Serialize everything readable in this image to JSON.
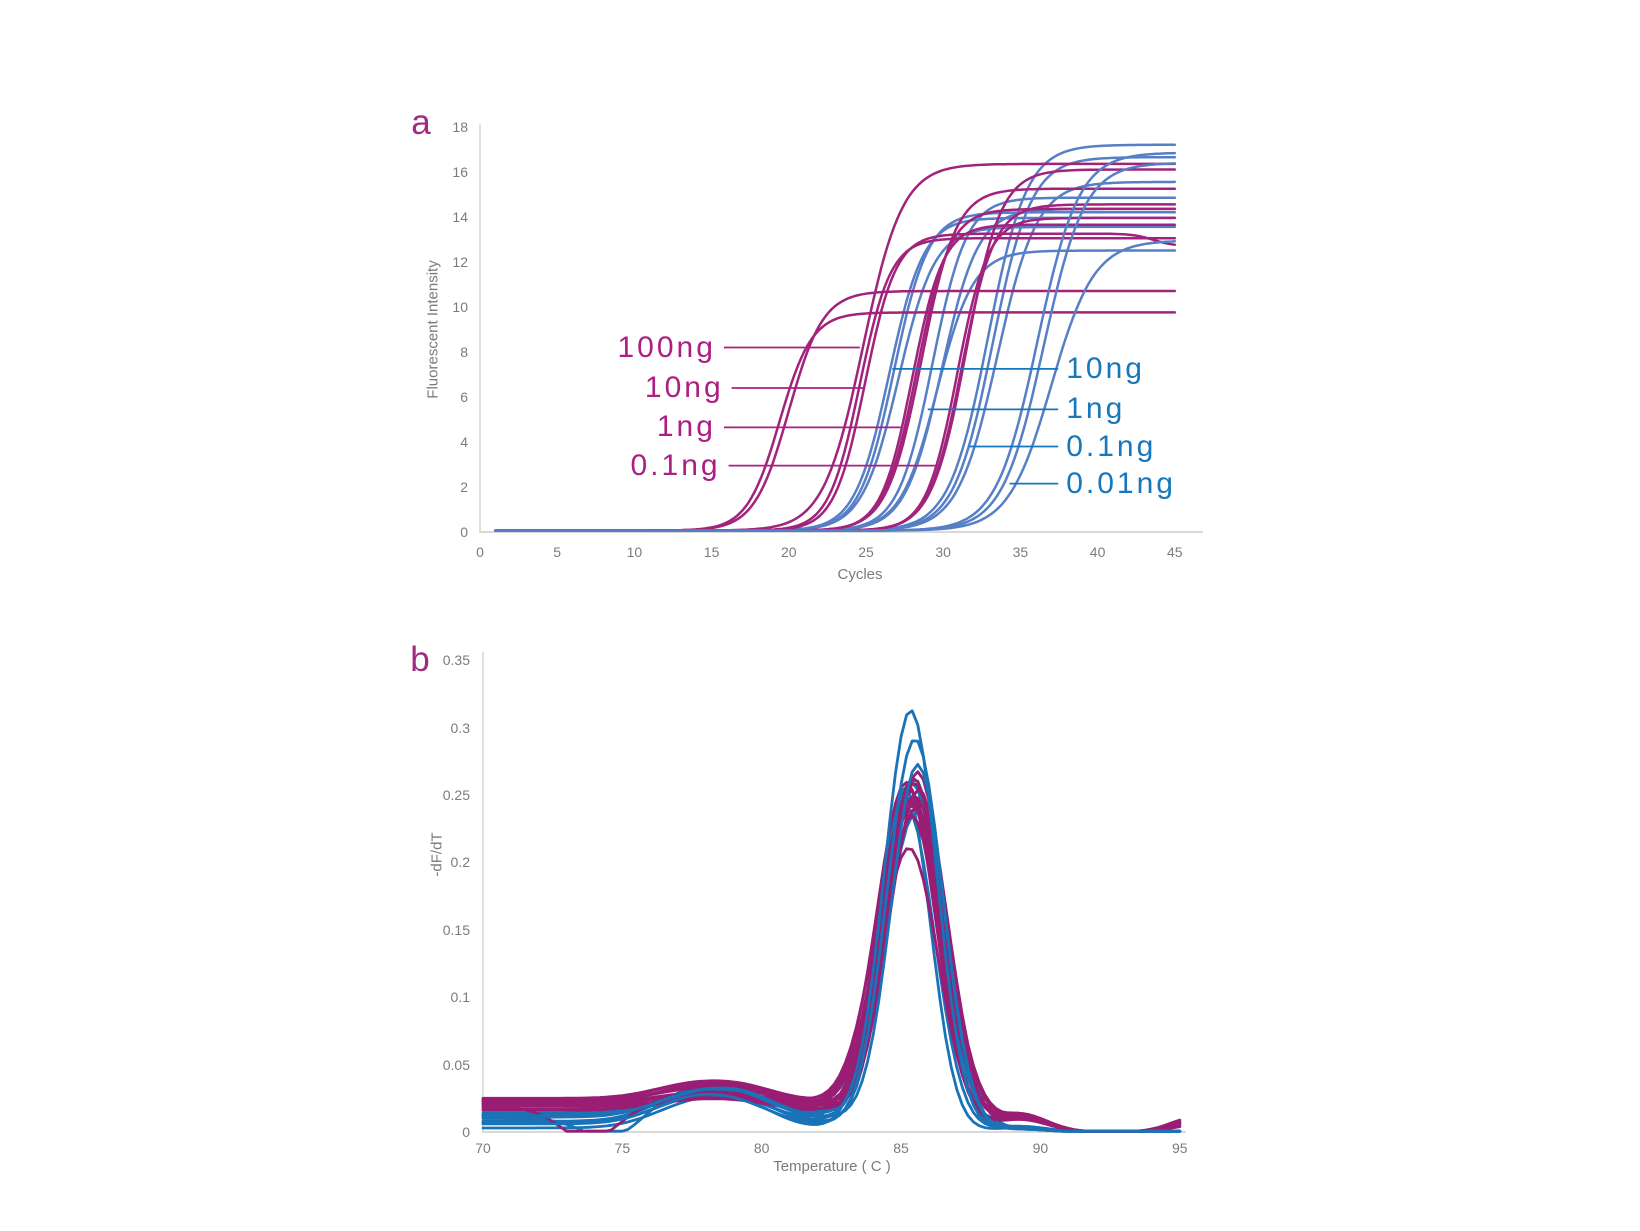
{
  "figure": {
    "background": "#ffffff",
    "description_panels": [
      "a",
      "b"
    ]
  },
  "chart_data": [
    {
      "id": "a",
      "type": "line",
      "panel_letter": "a",
      "xlabel": "Cycles",
      "ylabel": "Fluorescent Intensity",
      "xlim": [
        0,
        45
      ],
      "ylim": [
        0,
        18
      ],
      "xticks": [
        0,
        5,
        10,
        15,
        20,
        25,
        30,
        35,
        40,
        45
      ],
      "yticks": [
        0,
        2,
        4,
        6,
        8,
        10,
        12,
        14,
        16,
        18
      ],
      "colors": {
        "magenta_series": "#A1237C",
        "blue_series": "#577FC6",
        "magenta_label": "#AD1E82",
        "blue_label": "#1777BD",
        "axis": "#d9d9d9",
        "tick_text": "#7b7b7b"
      },
      "series": [
        {
          "name": "10ng (blue)",
          "color_key": "blue_series",
          "model": "sigmoid",
          "curves": [
            {
              "midpoint_cycle": 26.5,
              "slope": 0.9,
              "plateau": 13.9
            },
            {
              "midpoint_cycle": 26.8,
              "slope": 0.9,
              "plateau": 14.15
            },
            {
              "midpoint_cycle": 27.1,
              "slope": 0.85,
              "plateau": 13.5
            }
          ]
        },
        {
          "name": "1ng (blue)",
          "color_key": "blue_series",
          "model": "sigmoid",
          "curves": [
            {
              "midpoint_cycle": 29.3,
              "slope": 0.9,
              "plateau": 14.8
            },
            {
              "midpoint_cycle": 29.6,
              "slope": 0.85,
              "plateau": 12.45
            },
            {
              "midpoint_cycle": 29.9,
              "slope": 0.85,
              "plateau": 14.3
            }
          ]
        },
        {
          "name": "0.1ng (blue)",
          "color_key": "blue_series",
          "model": "sigmoid",
          "curves": [
            {
              "midpoint_cycle": 32.9,
              "slope": 0.8,
              "plateau": 17.15
            },
            {
              "midpoint_cycle": 33.2,
              "slope": 0.8,
              "plateau": 16.6
            },
            {
              "midpoint_cycle": 33.5,
              "slope": 0.78,
              "plateau": 15.5
            }
          ]
        },
        {
          "name": "100ng (magenta)",
          "color_key": "magenta_series",
          "model": "sigmoid",
          "curves": [
            {
              "midpoint_cycle": 19.4,
              "slope": 0.95,
              "plateau": 9.7
            },
            {
              "midpoint_cycle": 20.0,
              "slope": 0.9,
              "plateau": 10.65
            }
          ]
        },
        {
          "name": "10ng (magenta)",
          "color_key": "magenta_series",
          "model": "sigmoid",
          "curves": [
            {
              "midpoint_cycle": 24.6,
              "slope": 1.0,
              "plateau": 13.0
            },
            {
              "midpoint_cycle": 24.95,
              "slope": 1.0,
              "plateau": 13.2,
              "end_drop": 0.55
            },
            {
              "midpoint_cycle": 24.8,
              "slope": 0.78,
              "plateau": 16.3
            }
          ]
        },
        {
          "name": "1ng (magenta)",
          "color_key": "magenta_series",
          "model": "sigmoid",
          "curves": [
            {
              "midpoint_cycle": 28.0,
              "slope": 1.0,
              "plateau": 13.6
            },
            {
              "midpoint_cycle": 28.3,
              "slope": 0.95,
              "plateau": 14.3
            },
            {
              "midpoint_cycle": 28.6,
              "slope": 0.9,
              "plateau": 15.2
            }
          ]
        },
        {
          "name": "0.1ng (magenta)",
          "color_key": "magenta_series",
          "model": "sigmoid",
          "curves": [
            {
              "midpoint_cycle": 30.9,
              "slope": 1.0,
              "plateau": 13.9
            },
            {
              "midpoint_cycle": 31.2,
              "slope": 0.95,
              "plateau": 14.5
            },
            {
              "midpoint_cycle": 31.5,
              "slope": 0.9,
              "plateau": 16.05
            }
          ]
        },
        {
          "name": "0.01ng (blue)",
          "color_key": "blue_series",
          "model": "sigmoid",
          "curves": [
            {
              "midpoint_cycle": 36.1,
              "slope": 0.75,
              "plateau": 16.8
            },
            {
              "midpoint_cycle": 36.5,
              "slope": 0.75,
              "plateau": 16.35
            },
            {
              "midpoint_cycle": 37.0,
              "slope": 0.72,
              "plateau": 12.9
            }
          ]
        }
      ],
      "annotations_left": [
        {
          "label": "100ng",
          "value_y": 8.2,
          "line_start_cycle": 15.8,
          "line_end_cycle": 24.6
        },
        {
          "label": "10ng",
          "value_y": 6.4,
          "line_start_cycle": 16.3,
          "line_end_cycle": 24.9
        },
        {
          "label": "1ng",
          "value_y": 4.65,
          "line_start_cycle": 15.8,
          "line_end_cycle": 27.4
        },
        {
          "label": "0.1ng",
          "value_y": 2.95,
          "line_start_cycle": 16.1,
          "line_end_cycle": 29.6
        }
      ],
      "annotations_right": [
        {
          "label": "10ng",
          "value_y": 7.25,
          "line_start_cycle": 26.7,
          "line_end_cycle": 37.45
        },
        {
          "label": "1ng",
          "value_y": 5.45,
          "line_start_cycle": 29.0,
          "line_end_cycle": 37.45
        },
        {
          "label": "0.1ng",
          "value_y": 3.8,
          "line_start_cycle": 31.7,
          "line_end_cycle": 37.45
        },
        {
          "label": "0.01ng",
          "value_y": 2.15,
          "line_start_cycle": 34.3,
          "line_end_cycle": 37.45
        }
      ]
    },
    {
      "id": "b",
      "type": "line",
      "panel_letter": "b",
      "xlabel": "Temperature ( C )",
      "ylabel": "-dF/dT",
      "xlim": [
        70,
        95
      ],
      "ylim": [
        0,
        0.35
      ],
      "xticks": [
        70,
        75,
        80,
        85,
        90,
        95
      ],
      "ytick_labels": [
        "0",
        "0.05",
        "0.1",
        "0.15",
        "0.2",
        "0.25",
        "0.3",
        "0.35"
      ],
      "colors": {
        "magenta_series": "#9A1D74",
        "blue_series": "#1A72B7",
        "axis": "#d9d9d9",
        "tick_text": "#7b7b7b"
      },
      "series": [
        {
          "name": "melt curves (blue)",
          "color_key": "blue_series",
          "model": "melt_peak",
          "curves": [
            {
              "peak_temp": 85.25,
              "width": 1.05,
              "height": 0.252,
              "baseline_left": 0.013,
              "shoulder_77": 0.014,
              "shoulder_79": 0.01,
              "bump_89": 0.004
            },
            {
              "peak_temp": 85.5,
              "width": 1.0,
              "height": 0.26,
              "baseline_left": 0.007,
              "shoulder_77": 0.016,
              "shoulder_79": 0.013,
              "bump_89": 0.002
            },
            {
              "peak_temp": 85.3,
              "width": 1.1,
              "height": 0.246,
              "baseline_left": 0.01,
              "shoulder_77": 0.02,
              "shoulder_79": 0.008,
              "bump_89": 0.003,
              "dip_temp": 74.6,
              "dip_depth": 0.016
            },
            {
              "peak_temp": 85.2,
              "width": 1.0,
              "height": 0.24,
              "baseline_left": 0.003,
              "shoulder_77": 0.017,
              "shoulder_79": 0.014,
              "bump_89": 0.004
            },
            {
              "peak_temp": 85.4,
              "width": 1.05,
              "height": 0.256,
              "baseline_left": 0.012,
              "shoulder_77": 0.012,
              "shoulder_79": 0.017,
              "bump_89": 0.003
            },
            {
              "peak_temp": 85.55,
              "width": 1.1,
              "height": 0.235,
              "baseline_left": 0.008,
              "shoulder_77": 0.019,
              "shoulder_79": 0.012,
              "bump_89": 0.002
            },
            {
              "peak_temp": 85.15,
              "width": 0.9,
              "height": 0.252,
              "baseline_left": 0.014,
              "shoulder_77": 0.013,
              "shoulder_79": 0.016,
              "bump_89": 0.003
            }
          ]
        },
        {
          "name": "melt curves (magenta)",
          "color_key": "magenta_series",
          "model": "melt_peak",
          "curves": [
            {
              "peak_temp": 85.5,
              "width": 1.05,
              "height": 0.254,
              "baseline_left": 0.021,
              "shoulder_77": 0.006,
              "shoulder_79": 0.004,
              "bump_89": 0.011,
              "end_rise": 0.008
            },
            {
              "peak_temp": 85.35,
              "width": 1.1,
              "height": 0.247,
              "baseline_left": 0.023,
              "shoulder_77": 0.009,
              "shoulder_79": 0.005,
              "bump_89": 0.012,
              "end_rise": 0.009
            },
            {
              "peak_temp": 85.6,
              "width": 1.0,
              "height": 0.263,
              "baseline_left": 0.019,
              "shoulder_77": 0.005,
              "shoulder_79": 0.003,
              "bump_89": 0.01,
              "end_rise": 0.006
            },
            {
              "peak_temp": 85.3,
              "width": 1.15,
              "height": 0.24,
              "baseline_left": 0.024,
              "shoulder_77": 0.011,
              "shoulder_79": 0.006,
              "bump_89": 0.013,
              "end_rise": 0.01
            },
            {
              "peak_temp": 85.45,
              "width": 1.05,
              "height": 0.258,
              "baseline_left": 0.02,
              "shoulder_77": 0.007,
              "shoulder_79": 0.005,
              "bump_89": 0.011,
              "end_rise": 0.005
            },
            {
              "peak_temp": 85.55,
              "width": 1.1,
              "height": 0.235,
              "baseline_left": 0.022,
              "shoulder_77": 0.006,
              "shoulder_79": 0.004,
              "bump_89": 0.012,
              "end_rise": 0.008
            },
            {
              "peak_temp": 85.2,
              "width": 1.05,
              "height": 0.252,
              "baseline_left": 0.025,
              "shoulder_77": 0.01,
              "shoulder_79": 0.007,
              "bump_89": 0.01,
              "end_rise": 0.007
            },
            {
              "peak_temp": 85.4,
              "width": 1.0,
              "height": 0.23,
              "baseline_left": 0.018,
              "shoulder_77": 0.008,
              "shoulder_79": 0.005,
              "bump_89": 0.012,
              "end_rise": 0.006,
              "dip_temp": 73.8,
              "dip_depth": 0.024
            },
            {
              "peak_temp": 85.5,
              "width": 1.15,
              "height": 0.244,
              "baseline_left": 0.021,
              "shoulder_77": 0.012,
              "shoulder_79": 0.007,
              "bump_89": 0.011,
              "end_rise": 0.009
            },
            {
              "peak_temp": 85.3,
              "width": 1.05,
              "height": 0.206,
              "baseline_left": 0.017,
              "shoulder_77": 0.006,
              "shoulder_79": 0.004,
              "bump_89": 0.009,
              "end_rise": 0.005
            },
            {
              "peak_temp": 85.65,
              "width": 1.05,
              "height": 0.249,
              "baseline_left": 0.023,
              "shoulder_77": 0.008,
              "shoulder_79": 0.005,
              "bump_89": 0.013,
              "end_rise": 0.008
            },
            {
              "peak_temp": 85.4,
              "width": 1.1,
              "height": 0.238,
              "baseline_left": 0.016,
              "shoulder_77": 0.009,
              "shoulder_79": 0.006,
              "bump_89": 0.011,
              "end_rise": 0.011
            }
          ]
        },
        {
          "name": "melt curves tall (blue)",
          "color_key": "blue_series",
          "model": "melt_peak",
          "curves": [
            {
              "peak_temp": 85.35,
              "width": 0.95,
              "height": 0.31,
              "baseline_left": 0.011,
              "shoulder_77": 0.016,
              "shoulder_79": 0.012,
              "bump_89": 0.003
            },
            {
              "peak_temp": 85.5,
              "width": 1.0,
              "height": 0.29,
              "baseline_left": 0.006,
              "shoulder_77": 0.018,
              "shoulder_79": 0.01,
              "bump_89": 0.002
            },
            {
              "peak_temp": 85.6,
              "width": 0.95,
              "height": 0.27,
              "baseline_left": 0.012,
              "shoulder_77": 0.014,
              "shoulder_79": 0.013,
              "bump_89": 0.002
            }
          ]
        }
      ]
    }
  ]
}
